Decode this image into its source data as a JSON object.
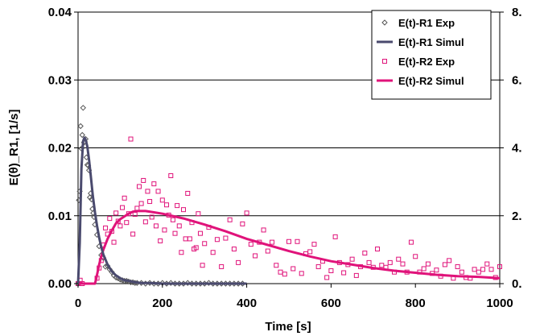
{
  "chart_data": {
    "type": "scatter",
    "xlabel": "Time [s]",
    "ylabel": "E(θ)_R1, [1/s]",
    "xlim": [
      0,
      1000
    ],
    "ylim": [
      0,
      0.04
    ],
    "y2lim": [
      0,
      8
    ],
    "x_ticks": [
      0,
      200,
      400,
      600,
      800,
      1000
    ],
    "x_tick_labels": [
      "0",
      "200",
      "400",
      "600",
      "800",
      "1000"
    ],
    "y_ticks": [
      0,
      0.01,
      0.02,
      0.03,
      0.04
    ],
    "y_tick_labels": [
      "0.00",
      "0.01",
      "0.02",
      "0.03",
      "0.04"
    ],
    "y2_ticks": [
      0,
      2,
      4,
      6,
      8
    ],
    "y2_tick_labels": [
      "0.",
      "2.",
      "4.",
      "6.",
      "8."
    ],
    "grid": "horizontal",
    "legend_position": "top-right",
    "colors": {
      "r1": "#4a4a6e",
      "r2": "#e0137a",
      "r1_markers": "#555555"
    },
    "series": [
      {
        "name": "E(t)-R1 Exp",
        "kind": "markers",
        "marker": "diamond",
        "x": [
          0,
          2,
          4,
          6,
          8,
          10,
          12,
          14,
          16,
          18,
          20,
          22,
          24,
          26,
          28,
          30,
          32,
          34,
          36,
          38,
          40,
          45,
          50,
          55,
          60,
          65,
          70,
          75,
          80,
          85,
          90,
          95,
          100,
          105,
          110,
          115,
          120,
          125,
          130,
          135,
          140,
          150,
          160,
          170,
          180,
          190,
          200,
          210,
          220,
          230,
          240,
          250,
          260,
          270,
          280,
          290,
          300,
          310,
          320,
          330,
          340,
          350,
          360,
          370,
          380,
          390
        ],
        "y": [
          0.0,
          0.0123,
          0.0136,
          0.0232,
          0.0199,
          0.0219,
          0.0259,
          0.0208,
          0.0209,
          0.0213,
          0.0186,
          0.0175,
          0.0174,
          0.0167,
          0.0127,
          0.0133,
          0.0124,
          0.011,
          0.0104,
          0.0098,
          0.0087,
          0.0072,
          0.0055,
          0.0042,
          0.0038,
          0.0025,
          0.0026,
          0.0021,
          0.0017,
          0.0012,
          0.0009,
          0.0008,
          0.0006,
          0.0005,
          0.0004,
          0.0004,
          0.0003,
          0.0002,
          0.0002,
          0.0001,
          0.0001,
          0.0001,
          0.0,
          0.0001,
          0.0,
          0.0,
          0.0001,
          0.0,
          0.0001,
          0.0,
          0.0,
          0.0,
          0.0001,
          0.0,
          0.0,
          0.0,
          0.0,
          0.0001,
          0.0,
          0.0,
          0.0,
          0.0,
          0.0,
          0.0,
          0.0,
          0.0
        ]
      },
      {
        "name": "E(t)-R1 Simul",
        "kind": "line",
        "x": [
          0,
          4,
          8,
          12,
          15,
          18,
          22,
          26,
          30,
          35,
          40,
          45,
          50,
          55,
          60,
          70,
          80,
          90,
          100,
          110,
          120,
          135,
          150,
          170,
          200,
          250,
          300,
          350,
          400
        ],
        "y": [
          0.0,
          0.006,
          0.017,
          0.021,
          0.0215,
          0.0212,
          0.0202,
          0.0183,
          0.016,
          0.013,
          0.0105,
          0.0085,
          0.0068,
          0.0054,
          0.0043,
          0.0028,
          0.0018,
          0.0012,
          0.0008,
          0.0005,
          0.0004,
          0.0002,
          0.0001,
          0.0001,
          0.0,
          0.0,
          0.0,
          0.0,
          0.0
        ]
      },
      {
        "name": "E(t)-R2 Exp",
        "kind": "markers",
        "marker": "square",
        "x": [
          0,
          5,
          10,
          45,
          50,
          55,
          60,
          65,
          70,
          75,
          80,
          85,
          90,
          95,
          100,
          105,
          110,
          115,
          120,
          125,
          130,
          135,
          140,
          145,
          150,
          155,
          160,
          165,
          170,
          175,
          180,
          185,
          190,
          195,
          200,
          205,
          210,
          215,
          220,
          225,
          230,
          235,
          240,
          245,
          250,
          255,
          260,
          265,
          270,
          275,
          280,
          285,
          290,
          295,
          300,
          310,
          320,
          330,
          340,
          350,
          360,
          370,
          380,
          390,
          400,
          410,
          420,
          430,
          440,
          450,
          460,
          470,
          480,
          490,
          500,
          510,
          520,
          530,
          540,
          550,
          560,
          570,
          580,
          590,
          600,
          610,
          620,
          630,
          640,
          650,
          660,
          670,
          680,
          690,
          700,
          710,
          720,
          730,
          740,
          750,
          760,
          770,
          780,
          790,
          800,
          810,
          820,
          830,
          840,
          850,
          860,
          870,
          880,
          890,
          900,
          910,
          920,
          930,
          940,
          950,
          960,
          970,
          980,
          990,
          1000
        ],
        "y": [
          0.0,
          0.0005,
          0.0,
          0.0008,
          0.0023,
          0.0034,
          0.0057,
          0.0082,
          0.0073,
          0.0096,
          0.0077,
          0.0061,
          0.0104,
          0.0092,
          0.0085,
          0.0112,
          0.0126,
          0.009,
          0.0103,
          0.0213,
          0.0073,
          0.0102,
          0.0111,
          0.0143,
          0.0118,
          0.0152,
          0.0091,
          0.0136,
          0.0121,
          0.0098,
          0.0147,
          0.0085,
          0.0136,
          0.0063,
          0.0123,
          0.0079,
          0.0116,
          0.0101,
          0.0159,
          0.0094,
          0.0074,
          0.0115,
          0.0085,
          0.0046,
          0.0109,
          0.0066,
          0.0133,
          0.0066,
          0.009,
          0.0051,
          0.0053,
          0.0103,
          0.0074,
          0.0027,
          0.0059,
          0.0083,
          0.0046,
          0.0065,
          0.0025,
          0.0067,
          0.0094,
          0.0051,
          0.0031,
          0.0088,
          0.0104,
          0.0058,
          0.0041,
          0.0061,
          0.0079,
          0.0048,
          0.0061,
          0.0027,
          0.0017,
          0.0014,
          0.0062,
          0.0022,
          0.0062,
          0.0015,
          0.0044,
          0.0047,
          0.0058,
          0.0025,
          0.0033,
          0.0009,
          0.0019,
          0.0069,
          0.0031,
          0.0016,
          0.0028,
          0.0036,
          0.0012,
          0.0025,
          0.0045,
          0.0031,
          0.0024,
          0.0051,
          0.0027,
          0.0024,
          0.0031,
          0.0017,
          0.0036,
          0.0029,
          0.0017,
          0.0061,
          0.004,
          0.0017,
          0.0022,
          0.0029,
          0.0015,
          0.002,
          0.0011,
          0.0028,
          0.0034,
          0.0008,
          0.0025,
          0.0017,
          0.0009,
          0.0008,
          0.0021,
          0.0017,
          0.0021,
          0.0029,
          0.0021,
          0.0009,
          0.0025
        ]
      },
      {
        "name": "E(t)-R2 Simul",
        "kind": "line",
        "x": [
          0,
          40,
          43,
          46,
          50,
          55,
          60,
          70,
          80,
          90,
          100,
          110,
          120,
          130,
          140,
          150,
          160,
          180,
          200,
          250,
          300,
          350,
          400,
          450,
          500,
          550,
          600,
          650,
          700,
          750,
          800,
          850,
          900,
          950,
          1000
        ],
        "y": [
          0.0,
          0.0,
          0.0007,
          0.0016,
          0.0028,
          0.004,
          0.005,
          0.0066,
          0.0078,
          0.0089,
          0.0095,
          0.0099,
          0.0103,
          0.0106,
          0.0107,
          0.0107,
          0.0107,
          0.0105,
          0.0103,
          0.0096,
          0.0087,
          0.0077,
          0.0066,
          0.0057,
          0.0048,
          0.004,
          0.0033,
          0.0028,
          0.0023,
          0.0019,
          0.0016,
          0.0013,
          0.0011,
          0.001,
          0.0008
        ]
      }
    ]
  }
}
